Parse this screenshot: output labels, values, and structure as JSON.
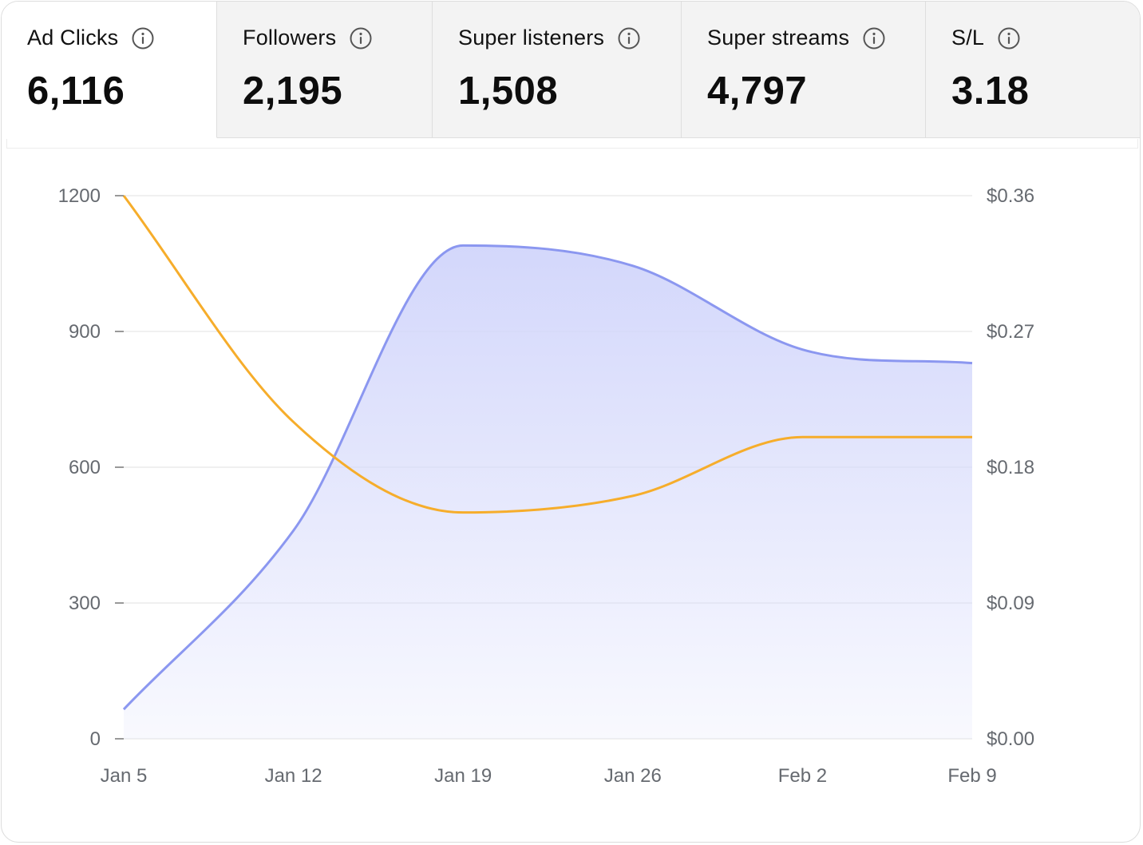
{
  "tabs": [
    {
      "label": "Ad Clicks",
      "value": "6,116",
      "active": true
    },
    {
      "label": "Followers",
      "value": "2,195",
      "active": false
    },
    {
      "label": "Super listeners",
      "value": "1,508",
      "active": false
    },
    {
      "label": "Super streams",
      "value": "4,797",
      "active": false
    },
    {
      "label": "S/L",
      "value": "3.18",
      "active": false
    }
  ],
  "icons": {
    "info": "info-circle-icon"
  },
  "colors": {
    "area_line": "#8b97f0",
    "area_fill": "#d8dcfb",
    "cost_line": "#f6ad2b",
    "grid": "#ececec",
    "text_muted": "#666a70"
  },
  "chart_data": {
    "type": "area",
    "x": [
      "Jan 5",
      "Jan 12",
      "Jan 19",
      "Jan 26",
      "Feb 2",
      "Feb 9"
    ],
    "x_values": [
      0,
      7,
      14,
      21,
      28,
      35
    ],
    "y_left": {
      "ticks": [
        "0",
        "300",
        "600",
        "900",
        "1200"
      ],
      "tick_values": [
        0,
        300,
        600,
        900,
        1200
      ],
      "range": [
        0,
        1200
      ]
    },
    "y_right": {
      "ticks": [
        "$0.00",
        "$0.09",
        "$0.18",
        "$0.27",
        "$0.36"
      ],
      "tick_values": [
        0,
        0.09,
        0.18,
        0.27,
        0.36
      ],
      "range": [
        0,
        0.36
      ]
    },
    "series": [
      {
        "axis": "left",
        "style": "area",
        "points": [
          [
            0,
            65
          ],
          [
            7,
            460
          ],
          [
            14,
            1090
          ],
          [
            21,
            1045
          ],
          [
            28,
            860
          ],
          [
            35,
            830
          ]
        ]
      },
      {
        "axis": "right",
        "style": "line",
        "points": [
          [
            0,
            0.36
          ],
          [
            7,
            0.21
          ],
          [
            14,
            0.15
          ],
          [
            21,
            0.161
          ],
          [
            28,
            0.2
          ],
          [
            35,
            0.2
          ]
        ]
      }
    ],
    "grid": true
  }
}
